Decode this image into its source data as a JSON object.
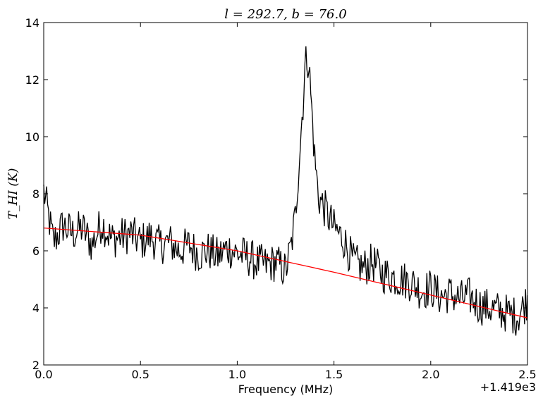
{
  "chart_data": {
    "type": "line",
    "title": "l = 292.7, b = 76.0",
    "xlabel": "Frequency (MHz)",
    "ylabel": "T_HI (K)",
    "x_offset_label": "+1.419e3",
    "xlim": [
      0.0,
      2.5
    ],
    "ylim": [
      2,
      14
    ],
    "x_ticks": [
      "0.0",
      "0.5",
      "1.0",
      "1.5",
      "2.0",
      "2.5"
    ],
    "y_ticks": [
      "2",
      "4",
      "6",
      "8",
      "10",
      "12",
      "14"
    ],
    "grid": false,
    "legend": "none",
    "series": [
      {
        "color": "#000000",
        "x": [
          0.0,
          0.05,
          0.1,
          0.15,
          0.2,
          0.25,
          0.3,
          0.35,
          0.4,
          0.45,
          0.5,
          0.55,
          0.6,
          0.65,
          0.7,
          0.75,
          0.8,
          0.85,
          0.9,
          0.95,
          1.0,
          1.05,
          1.1,
          1.15,
          1.2,
          1.25,
          1.28,
          1.3,
          1.32,
          1.34,
          1.35,
          1.36,
          1.37,
          1.38,
          1.4,
          1.42,
          1.45,
          1.5,
          1.55,
          1.6,
          1.65,
          1.7,
          1.75,
          1.8,
          1.85,
          1.9,
          1.95,
          2.0,
          2.05,
          2.1,
          2.15,
          2.2,
          2.25,
          2.3,
          2.35,
          2.4,
          2.45,
          2.5
        ],
        "values": [
          8.1,
          6.3,
          6.9,
          6.6,
          6.8,
          6.2,
          7.0,
          6.4,
          6.5,
          6.6,
          6.3,
          6.5,
          6.2,
          6.3,
          6.0,
          6.2,
          5.9,
          6.0,
          5.8,
          6.1,
          5.9,
          5.8,
          5.6,
          5.5,
          5.6,
          5.3,
          6.2,
          7.2,
          9.2,
          11.2,
          12.4,
          12.8,
          12.6,
          11.5,
          9.3,
          7.9,
          7.5,
          6.8,
          6.4,
          5.6,
          5.4,
          5.6,
          5.2,
          5.1,
          5.0,
          4.9,
          4.6,
          4.7,
          4.4,
          4.5,
          4.3,
          4.4,
          4.1,
          4.0,
          3.9,
          3.8,
          3.7,
          4.3
        ],
        "noise_amplitude": 0.7
      },
      {
        "color": "#ff0000",
        "x": [
          0.0,
          0.5,
          1.0,
          1.5,
          2.0,
          2.5
        ],
        "values": [
          6.8,
          6.55,
          6.0,
          5.25,
          4.45,
          3.65
        ]
      }
    ]
  }
}
